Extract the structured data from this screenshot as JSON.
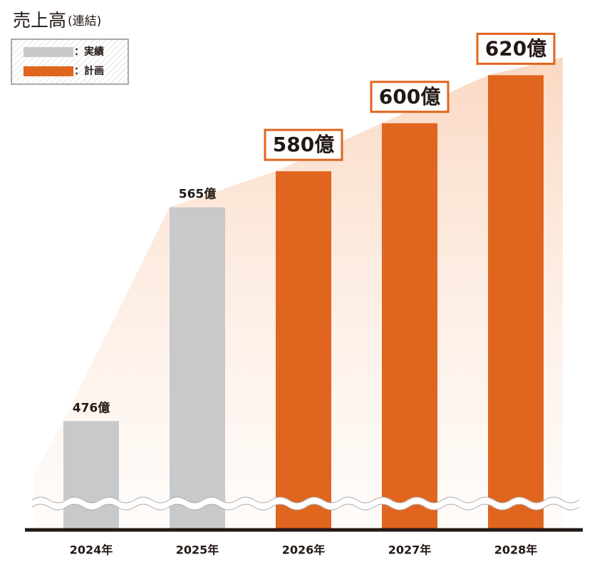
{
  "chart_data": {
    "type": "bar",
    "title": "売上高",
    "subtitle": "(連結)",
    "categories": [
      "2024年",
      "2025年",
      "2026年",
      "2027年",
      "2028年"
    ],
    "series": [
      {
        "name": "：実績",
        "color": "#c8c9ca",
        "values": [
          476,
          565,
          null,
          null,
          null
        ],
        "value_labels": [
          "476億",
          "565億",
          null,
          null,
          null
        ]
      },
      {
        "name": "：計画",
        "color": "#e0651e",
        "values": [
          null,
          null,
          580,
          600,
          620
        ],
        "value_labels": [
          null,
          null,
          "580億",
          "600億",
          "620億"
        ]
      }
    ],
    "ylim": [
      431,
      632
    ]
  }
}
